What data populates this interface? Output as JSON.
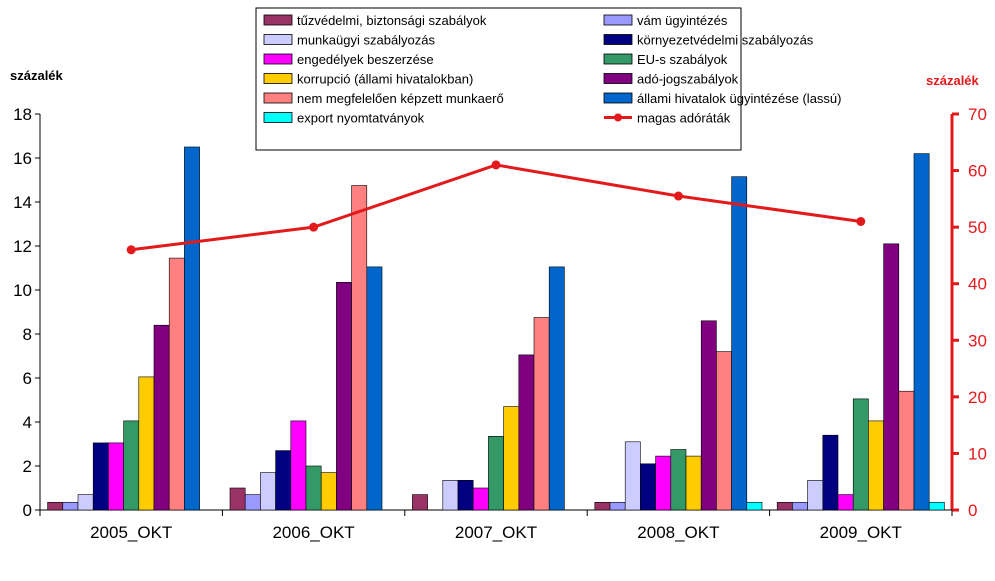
{
  "chart_data": {
    "type": "bar",
    "categories": [
      "2005_OKT",
      "2006_OKT",
      "2007_OKT",
      "2008_OKT",
      "2009_OKT"
    ],
    "ylabel_left": "százalék",
    "ylabel_right": "százalék",
    "ylim_left": [
      0,
      18
    ],
    "yticks_left": [
      0,
      2,
      4,
      6,
      8,
      10,
      12,
      14,
      16,
      18
    ],
    "ylim_right": [
      0,
      70
    ],
    "yticks_right": [
      0,
      10,
      20,
      30,
      40,
      50,
      60,
      70
    ],
    "right_axis_color": "#e31a1c",
    "legend_position": "top-center",
    "grid": false,
    "series": [
      {
        "name": "tűzvédelmi, biztonsági szabályok",
        "color": "#993366",
        "values": [
          0.35,
          1.0,
          0.7,
          0.35,
          0.35
        ]
      },
      {
        "name": "vám ügyintézés",
        "color": "#9999ff",
        "values": [
          0.35,
          0.7,
          0.0,
          0.35,
          0.35
        ]
      },
      {
        "name": "munkaügyi szabályozás",
        "color": "#ccccff",
        "values": [
          0.7,
          1.7,
          1.35,
          3.1,
          1.35
        ]
      },
      {
        "name": "környezetvédelmi szabályozás",
        "color": "#000080",
        "values": [
          3.05,
          2.7,
          1.35,
          2.1,
          3.4
        ]
      },
      {
        "name": "engedélyek beszerzése",
        "color": "#ff00ff",
        "values": [
          3.05,
          4.05,
          1.0,
          2.45,
          0.7
        ]
      },
      {
        "name": "EU-s szabályok",
        "color": "#339966",
        "values": [
          4.05,
          2.0,
          3.35,
          2.75,
          5.05
        ]
      },
      {
        "name": "korrupció (állami hivatalokban)",
        "color": "#ffcc00",
        "values": [
          6.05,
          1.7,
          4.7,
          2.45,
          4.05
        ]
      },
      {
        "name": "adó-jogszabályok",
        "color": "#800080",
        "values": [
          8.4,
          10.35,
          7.05,
          8.6,
          12.1
        ]
      },
      {
        "name": "nem megfelelően képzett munkaerő",
        "color": "#ff8080",
        "values": [
          11.45,
          14.75,
          8.75,
          7.2,
          5.4
        ]
      },
      {
        "name": "állami hivatalok ügyintézése (lassú)",
        "color": "#0066cc",
        "values": [
          16.5,
          11.05,
          11.05,
          15.15,
          16.2
        ]
      },
      {
        "name": "export nyomtatványok",
        "color": "#00ffff",
        "values": [
          0.0,
          0.0,
          0.0,
          0.35,
          0.35
        ]
      }
    ],
    "line_series": {
      "name": "magas adóráták",
      "color": "#e31a1c",
      "axis": "right",
      "values": [
        46,
        50,
        61,
        55.5,
        51
      ]
    },
    "legend_order": [
      "tűzvédelmi, biztonsági szabályok",
      "vám ügyintézés",
      "munkaügyi szabályozás",
      "környezetvédelmi szabályozás",
      "engedélyek beszerzése",
      "EU-s szabályok",
      "korrupció (állami hivatalokban)",
      "adó-jogszabályok",
      "nem megfelelően képzett munkaerő",
      "állami hivatalok ügyintézése (lassú)",
      "export nyomtatványok",
      "magas adóráták"
    ]
  }
}
